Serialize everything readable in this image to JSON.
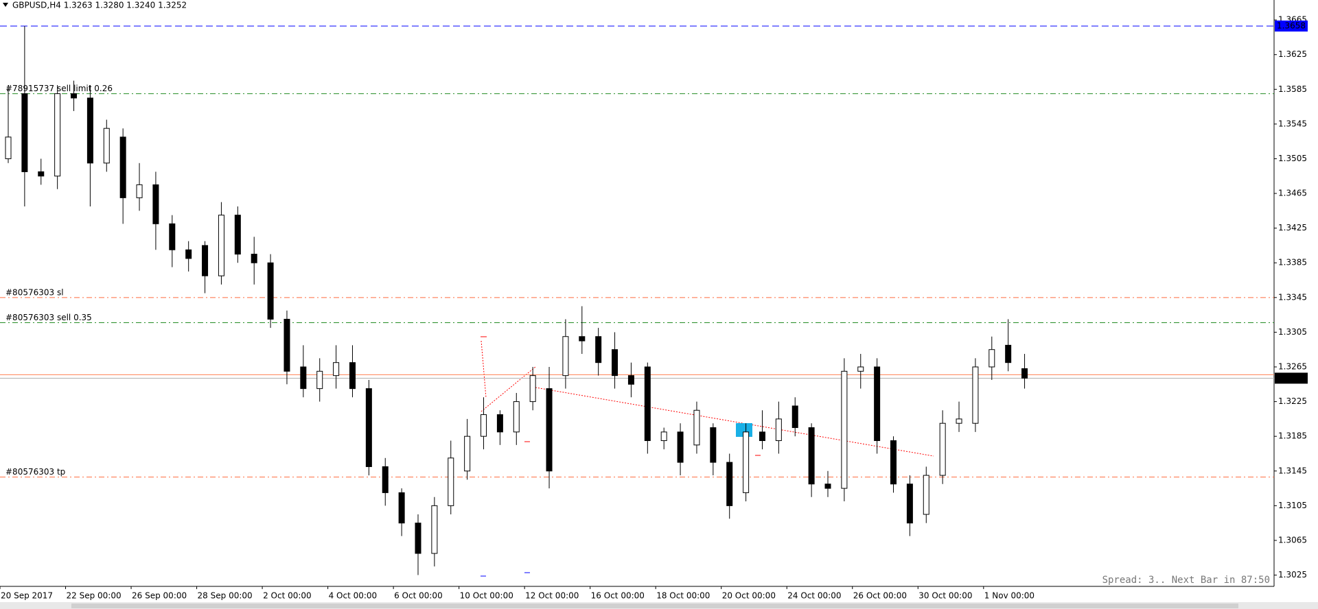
{
  "header": "GBPUSD,H4  1.3263 1.3280 1.3240 1.3252",
  "status": "Spread: 3.. Next Bar in 87:50",
  "chart_data": {
    "type": "candlestick",
    "categories": [
      "20 Sep 2017",
      null,
      null,
      null,
      "22 Sep 00:00",
      null,
      null,
      null,
      "26 Sep 00:00",
      null,
      null,
      null,
      "28 Sep 00:00",
      null,
      null,
      null,
      "2 Oct 00:00",
      null,
      null,
      null,
      "4 Oct 00:00",
      null,
      null,
      null,
      "6 Oct 00:00",
      null,
      null,
      null,
      "10 Oct 00:00",
      null,
      null,
      null,
      "12 Oct 00:00",
      null,
      null,
      null,
      "16 Oct 00:00",
      null,
      null,
      null,
      "18 Oct 00:00",
      null,
      null,
      null,
      "20 Oct 00:00",
      null,
      null,
      null,
      "24 Oct 00:00",
      null,
      null,
      null,
      "26 Oct 00:00",
      null,
      null,
      null,
      "30 Oct 00:00",
      null,
      null,
      null,
      "1 Nov 00:00",
      null,
      null
    ],
    "open": [
      1.3505,
      1.358,
      1.349,
      1.3485,
      1.358,
      1.3575,
      1.35,
      1.353,
      1.346,
      1.3475,
      1.343,
      1.34,
      1.3405,
      1.337,
      1.344,
      1.3395,
      1.3385,
      1.332,
      1.3265,
      1.324,
      1.3255,
      1.327,
      1.324,
      1.315,
      1.312,
      1.3085,
      1.305,
      1.3105,
      1.3145,
      1.3185,
      1.321,
      1.319,
      1.3225,
      1.324,
      1.3255,
      1.33,
      1.33,
      1.3285,
      1.3255,
      1.3265,
      1.318,
      1.319,
      1.3175,
      1.3195,
      1.3155,
      1.312,
      1.319,
      1.318,
      1.322,
      1.3195,
      1.313,
      1.3125,
      1.326,
      1.3265,
      1.318,
      1.313,
      1.3095,
      1.314,
      1.32,
      1.32,
      1.3265,
      1.329,
      1.3263
    ],
    "high": [
      1.359,
      1.3658,
      1.3505,
      1.359,
      1.3595,
      1.359,
      1.355,
      1.354,
      1.35,
      1.349,
      1.344,
      1.341,
      1.341,
      1.3455,
      1.345,
      1.3415,
      1.3395,
      1.333,
      1.329,
      1.3275,
      1.329,
      1.329,
      1.325,
      1.316,
      1.3125,
      1.3095,
      1.3115,
      1.318,
      1.3205,
      1.323,
      1.3215,
      1.3235,
      1.3265,
      1.3265,
      1.332,
      1.3335,
      1.331,
      1.3305,
      1.327,
      1.327,
      1.3195,
      1.32,
      1.3225,
      1.32,
      1.3165,
      1.32,
      1.3215,
      1.3225,
      1.323,
      1.32,
      1.3145,
      1.3275,
      1.328,
      1.3275,
      1.3185,
      1.314,
      1.315,
      1.3215,
      1.3225,
      1.3275,
      1.33,
      1.332,
      1.328
    ],
    "low": [
      1.35,
      1.345,
      1.3475,
      1.347,
      1.356,
      1.345,
      1.349,
      1.343,
      1.3445,
      1.34,
      1.338,
      1.3375,
      1.335,
      1.336,
      1.3385,
      1.336,
      1.331,
      1.3245,
      1.323,
      1.3225,
      1.324,
      1.323,
      1.314,
      1.3105,
      1.307,
      1.3025,
      1.3035,
      1.3095,
      1.3135,
      1.317,
      1.3175,
      1.3175,
      1.3215,
      1.3125,
      1.324,
      1.328,
      1.3255,
      1.324,
      1.323,
      1.3165,
      1.317,
      1.314,
      1.3165,
      1.314,
      1.309,
      1.311,
      1.317,
      1.3165,
      1.3185,
      1.3115,
      1.3115,
      1.311,
      1.324,
      1.3165,
      1.312,
      1.307,
      1.3085,
      1.313,
      1.319,
      1.319,
      1.325,
      1.326,
      1.324
    ],
    "close": [
      1.353,
      1.349,
      1.3485,
      1.358,
      1.3575,
      1.35,
      1.354,
      1.346,
      1.3475,
      1.343,
      1.34,
      1.339,
      1.337,
      1.344,
      1.3395,
      1.3385,
      1.332,
      1.326,
      1.324,
      1.326,
      1.327,
      1.324,
      1.315,
      1.312,
      1.3085,
      1.305,
      1.3105,
      1.316,
      1.3185,
      1.321,
      1.319,
      1.3225,
      1.3255,
      1.3145,
      1.33,
      1.3295,
      1.327,
      1.3255,
      1.3245,
      1.318,
      1.319,
      1.3155,
      1.3215,
      1.3155,
      1.3105,
      1.319,
      1.318,
      1.3205,
      1.3195,
      1.313,
      1.3125,
      1.326,
      1.3265,
      1.318,
      1.313,
      1.3085,
      1.314,
      1.32,
      1.3205,
      1.3265,
      1.3285,
      1.327,
      1.3252
    ],
    "ylim": [
      1.3012,
      1.3688
    ],
    "yticks": [
      1.3665,
      1.3625,
      1.3585,
      1.3545,
      1.3505,
      1.3465,
      1.3425,
      1.3385,
      1.3345,
      1.3305,
      1.3265,
      1.3225,
      1.3185,
      1.3145,
      1.3105,
      1.3065,
      1.3025
    ],
    "up_color": "#ffffff",
    "down_color": "#000000",
    "levels": [
      {
        "value": 1.3658,
        "color": "#0000ff",
        "style": "dashed",
        "tag": true
      },
      {
        "value": 1.358,
        "color": "#228b22",
        "style": "dashdot",
        "label": "#78915737 sell limit 0.26"
      },
      {
        "value": 1.3345,
        "color": "#ff6a3d",
        "style": "dashdot",
        "label": "#80576303 sl"
      },
      {
        "value": 1.3316,
        "color": "#228b22",
        "style": "dashdot",
        "label": "#80576303 sell 0.35"
      },
      {
        "value": 1.3256,
        "color": "#ff7f50",
        "style": "solid"
      },
      {
        "value": 1.3252,
        "color": "#b0b0b0",
        "style": "solid",
        "tag": true
      },
      {
        "value": 1.3138,
        "color": "#ff6a3d",
        "style": "dashdot",
        "label": "#80576303 tp"
      }
    ]
  }
}
